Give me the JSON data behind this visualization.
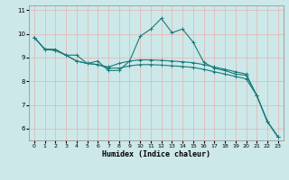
{
  "title": "",
  "xlabel": "Humidex (Indice chaleur)",
  "xlim": [
    -0.5,
    23.5
  ],
  "ylim": [
    5.5,
    11.2
  ],
  "yticks": [
    6,
    7,
    8,
    9,
    10,
    11
  ],
  "xticks": [
    0,
    1,
    2,
    3,
    4,
    5,
    6,
    7,
    8,
    9,
    10,
    11,
    12,
    13,
    14,
    15,
    16,
    17,
    18,
    19,
    20,
    21,
    22,
    23
  ],
  "bg_color": "#cce8e8",
  "grid_color": "#e8b0b0",
  "line_color": "#1a7a7a",
  "line_width": 0.8,
  "marker": "+",
  "marker_size": 3.5,
  "curves": [
    [
      9.85,
      9.35,
      9.35,
      9.1,
      9.1,
      8.75,
      8.85,
      8.45,
      8.45,
      8.85,
      9.9,
      10.2,
      10.65,
      10.05,
      10.2,
      9.65,
      8.8,
      8.55,
      8.45,
      8.3,
      8.25,
      7.4,
      6.3,
      5.65
    ],
    [
      9.85,
      9.35,
      9.3,
      9.1,
      8.85,
      8.75,
      8.7,
      8.6,
      8.75,
      8.85,
      8.9,
      8.9,
      8.88,
      8.85,
      8.82,
      8.78,
      8.7,
      8.6,
      8.5,
      8.4,
      8.3,
      7.4,
      6.3,
      5.65
    ],
    [
      9.85,
      9.35,
      9.3,
      9.1,
      8.85,
      8.75,
      8.7,
      8.55,
      8.55,
      8.65,
      8.7,
      8.7,
      8.68,
      8.65,
      8.62,
      8.58,
      8.5,
      8.4,
      8.3,
      8.2,
      8.1,
      7.4,
      6.3,
      5.65
    ]
  ]
}
